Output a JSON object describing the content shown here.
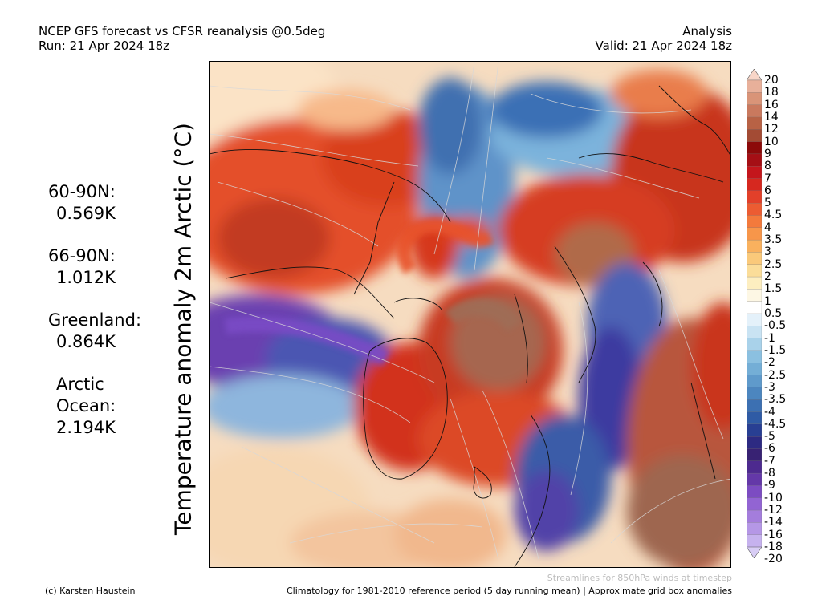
{
  "header": {
    "line1_left": "NCEP GFS forecast vs CFSR reanalysis @0.5deg",
    "line2_left": "Run: 21 Apr 2024 18z",
    "line1_right": "Analysis",
    "line2_right": "Valid: 21 Apr 2024 18z"
  },
  "vertical_title": "Temperature anomaly 2m Arctic (°C)",
  "stats": [
    {
      "label": "60-90N:",
      "value": "0.569K"
    },
    {
      "label": "66-90N:",
      "value": "1.012K"
    },
    {
      "label": "Greenland:",
      "value": "0.864K"
    },
    {
      "label": "Arctic Ocean:",
      "value": "2.194K"
    }
  ],
  "colorbar": {
    "labels": [
      "20",
      "18",
      "16",
      "14",
      "12",
      "10",
      "9",
      "8",
      "7",
      "6",
      "5",
      "4.5",
      "4",
      "3.5",
      "3",
      "2.5",
      "2",
      "1.5",
      "1",
      "0.5",
      "-0.5",
      "-1",
      "-1.5",
      "-2",
      "-2.5",
      "-3",
      "-3.5",
      "-4",
      "-4.5",
      "-5",
      "-6",
      "-7",
      "-8",
      "-9",
      "-10",
      "-12",
      "-14",
      "-16",
      "-18",
      "-20"
    ],
    "colors": [
      "#f8d6c8",
      "#e8b09a",
      "#d99478",
      "#c9795e",
      "#b86245",
      "#a34b34",
      "#8c0a0a",
      "#a50f15",
      "#c4161c",
      "#d6281f",
      "#e2402a",
      "#ec5c32",
      "#f37a3c",
      "#f7964a",
      "#f9b15e",
      "#fac97a",
      "#fbdd99",
      "#fdeec0",
      "#fdf7e4",
      "#ffffff",
      "#e4f1fa",
      "#c9e3f3",
      "#a9d2ea",
      "#8bc0e0",
      "#74aed6",
      "#5f9acb",
      "#4c86bf",
      "#3c70b2",
      "#2f5ba5",
      "#283f93",
      "#2d2a82",
      "#382273",
      "#4d2a8f",
      "#6438a8",
      "#7c4cc2",
      "#9264d3",
      "#a47ddc",
      "#b597e6",
      "#c6b2ee",
      "#d8cdf5"
    ]
  },
  "footer": {
    "streamlines": "Streamlines for 850hPa winds at timestep",
    "climatology": "Climatology for 1981-2010 reference period (5 day running mean) | Approximate grid box anomalies",
    "credit": "(c) Karsten Haustein"
  }
}
